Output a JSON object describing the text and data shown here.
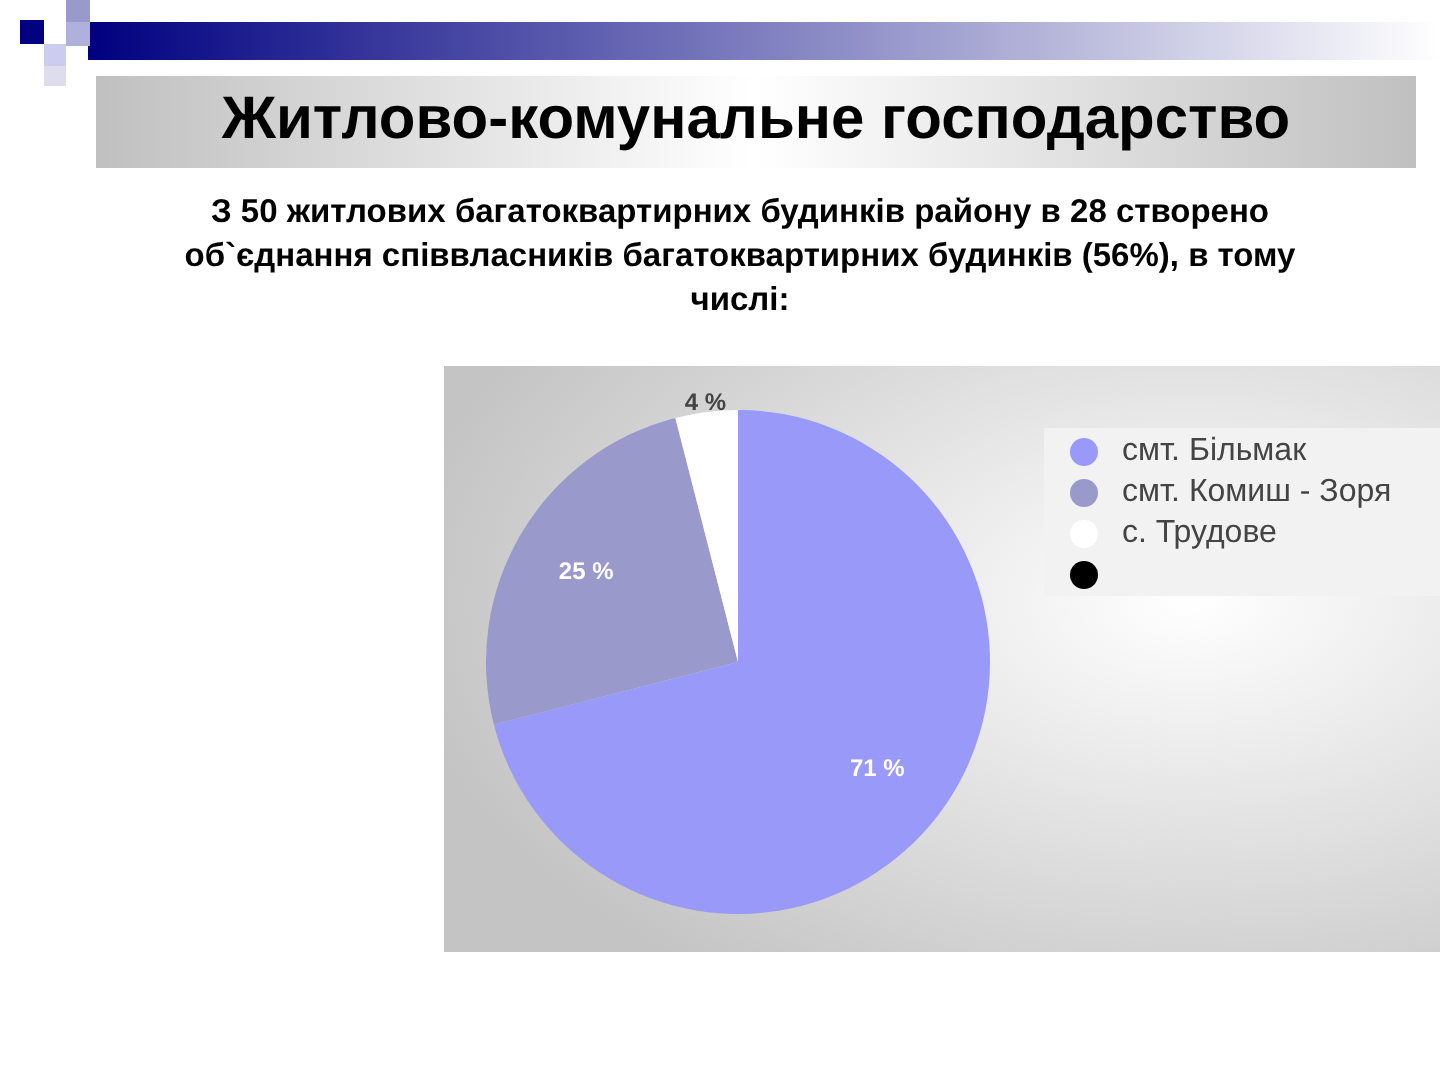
{
  "chart_data": {
    "type": "pie",
    "title": "Житлово-комунальне господарство",
    "subtitle": "З 50 житлових  багатоквартирних будинків району в  28 створено об`єднання співвласників багатоквартирних будинків (56%), в тому числі:",
    "categories": [
      "смт. Більмак",
      "смт. Комиш - Зоря",
      "с. Трудове",
      null
    ],
    "values": [
      71,
      25,
      4,
      0
    ],
    "colors": [
      "#9999f9",
      "#9999cc",
      "#ffffff",
      "#000000"
    ],
    "value_labels": [
      "71 %",
      "25 %",
      "4 %",
      null
    ],
    "legend": "right"
  }
}
